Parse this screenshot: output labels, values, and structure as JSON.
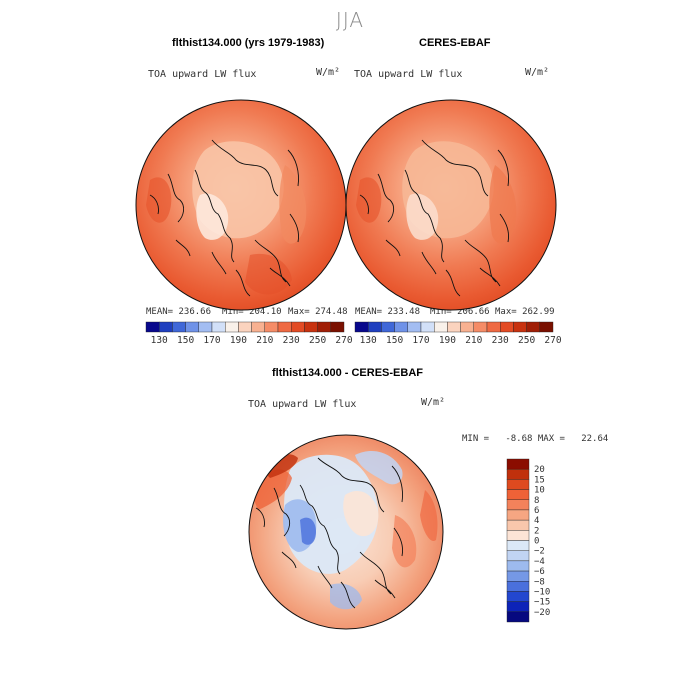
{
  "figure": {
    "season": "JJA"
  },
  "chart_data": [
    {
      "type": "heatmap",
      "projection": "polar-stereographic (north pole)",
      "title": "flthist134.000 (yrs 1979-1983)",
      "variable": "TOA upward LW flux",
      "units": "W/m²",
      "stats": {
        "mean_text": "MEAN= 236.66",
        "min_text": "Min= 204.10",
        "max_text": "Max= 274.48",
        "mean": 236.66,
        "min": 204.1,
        "max": 274.48
      }
    },
    {
      "type": "heatmap",
      "projection": "polar-stereographic (north pole)",
      "title": "CERES-EBAF",
      "variable": "TOA upward LW flux",
      "units": "W/m²",
      "stats": {
        "mean_text": "MEAN= 233.48",
        "min_text": "Min= 206.66",
        "max_text": "Max= 262.99",
        "mean": 233.48,
        "min": 206.66,
        "max": 262.99
      }
    },
    {
      "type": "heatmap",
      "projection": "polar-stereographic (north pole)",
      "title": "flthist134.000 - CERES-EBAF",
      "variable": "TOA upward LW flux",
      "units": "W/m²",
      "stats": {
        "minmax_text": "MIN =   -8.68 MAX =   22.64",
        "min": -8.68,
        "max": 22.64
      }
    }
  ],
  "colorbar_abs": {
    "tick_labels": [
      "130",
      "150",
      "170",
      "190",
      "210",
      "230",
      "250",
      "270"
    ],
    "colors": [
      "#08088c",
      "#1f3fbf",
      "#3f67d8",
      "#6f92e8",
      "#a3bdf2",
      "#d2e0f8",
      "#f9f1ea",
      "#fbd3be",
      "#f8b191",
      "#f58c67",
      "#ef6a43",
      "#e34b24",
      "#c8320f",
      "#a01e06",
      "#7a1000"
    ]
  },
  "colorbar_diff": {
    "labels": [
      "20",
      "15",
      "10",
      "8",
      "6",
      "4",
      "2",
      "0",
      "−2",
      "−4",
      "−6",
      "−8",
      "−10",
      "−15",
      "−20"
    ],
    "colors": [
      "#8b0d00",
      "#c0300c",
      "#de4a1f",
      "#ee6237",
      "#f3825b",
      "#f6a682",
      "#f9c7ac",
      "#fce4d6",
      "#dbe8f7",
      "#c1d4f3",
      "#9dbaee",
      "#7598e6",
      "#4a70dc",
      "#2347cf",
      "#0d23b8",
      "#06097f"
    ]
  }
}
